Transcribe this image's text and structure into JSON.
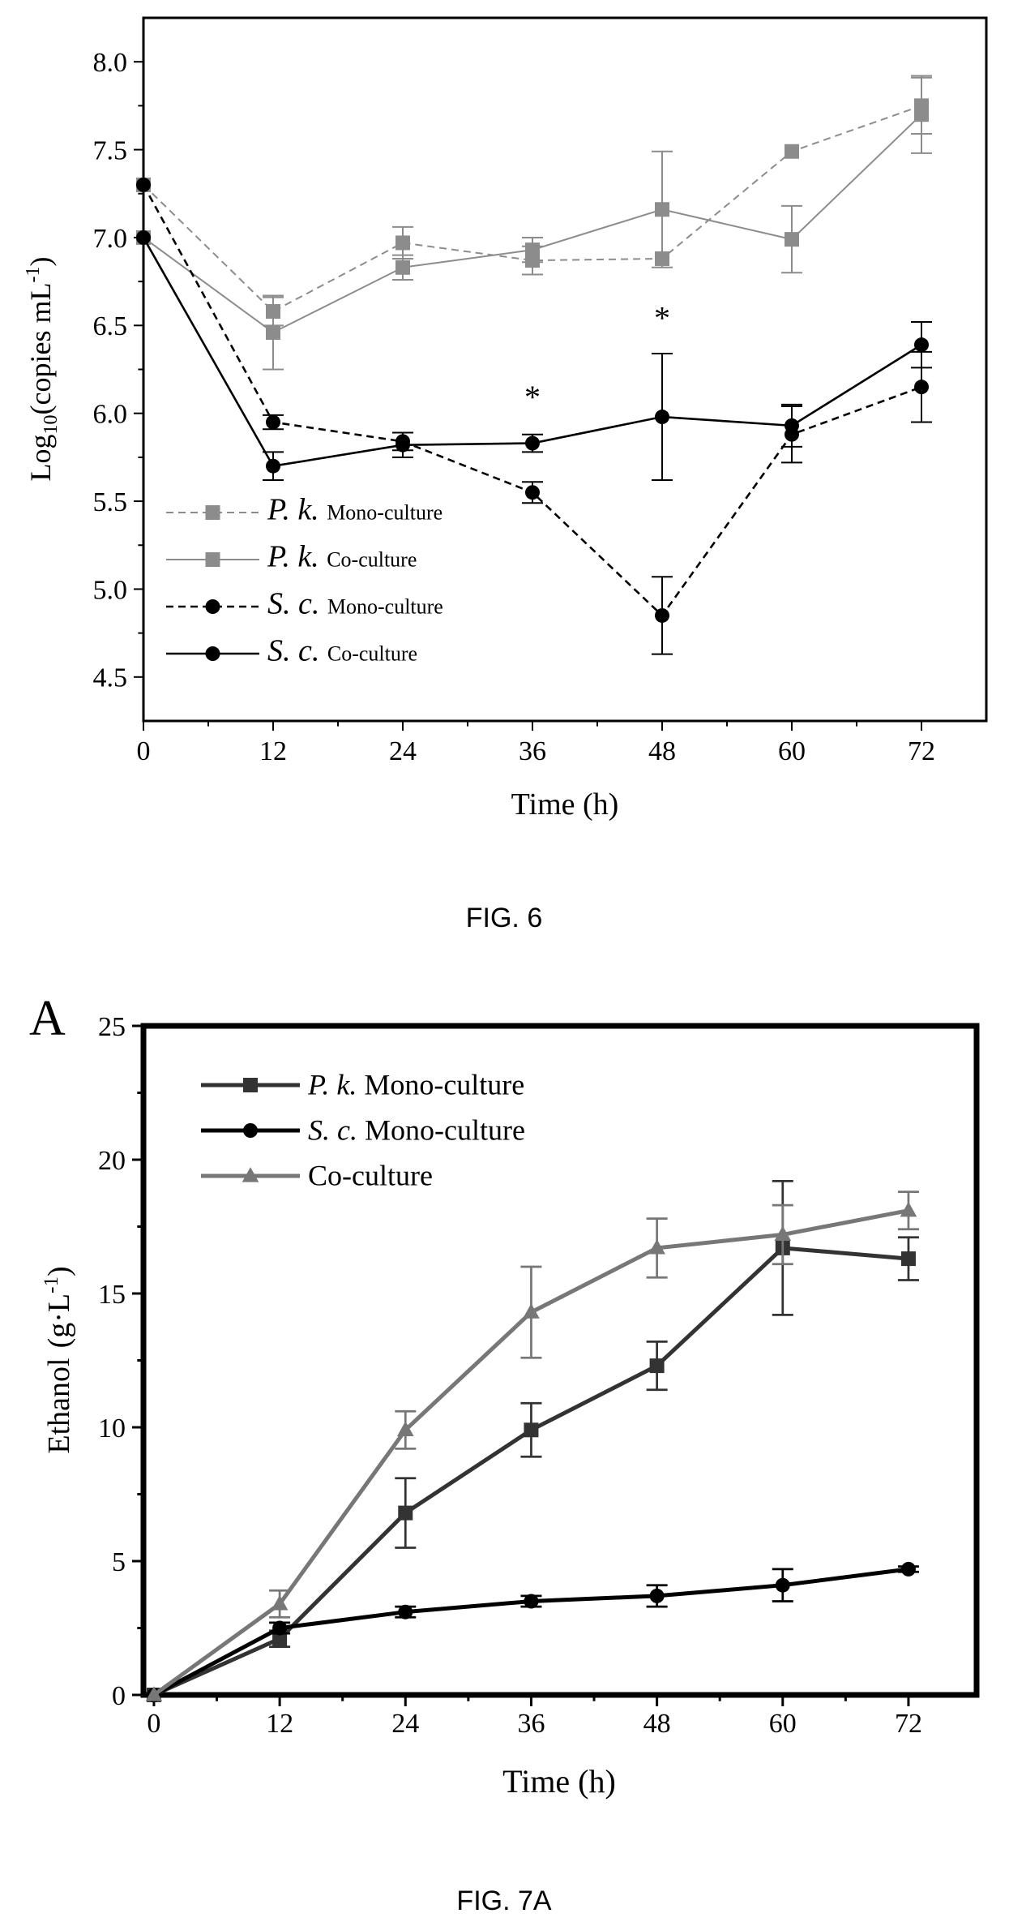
{
  "chart_data": [
    {
      "type": "line",
      "caption": "FIG. 6",
      "xlabel": "Time (h)",
      "ylabel_prefix": "Log",
      "ylabel_sub": "10",
      "ylabel_mid": "(copies mL",
      "ylabel_sup": "-1",
      "ylabel_end": ")",
      "x_ticks": [
        "0",
        "12",
        "24",
        "36",
        "48",
        "60",
        "72"
      ],
      "y_ticks": [
        "4.5",
        "5.0",
        "5.5",
        "6.0",
        "6.5",
        "7.0",
        "7.5",
        "8.0"
      ],
      "xlim": [
        0,
        78
      ],
      "ylim": [
        4.25,
        8.25
      ],
      "grid": false,
      "legend_position": "bottom-left",
      "x": [
        0,
        12,
        24,
        36,
        48,
        60,
        72
      ],
      "series": [
        {
          "name_italic": "P. k.",
          "name_suffix": "Mono-culture",
          "marker": "square",
          "color": "#8c8c8c",
          "dash": "dashed",
          "line_width": 2,
          "values": [
            7.3,
            6.58,
            6.97,
            6.87,
            6.88,
            7.49,
            7.75
          ],
          "errors": [
            0,
            0.08,
            0.09,
            0.08,
            0,
            0,
            0.16
          ]
        },
        {
          "name_italic": "P. k.",
          "name_suffix": "Co-culture",
          "marker": "square",
          "color": "#8c8c8c",
          "dash": "solid",
          "line_width": 2,
          "values": [
            7.0,
            6.46,
            6.83,
            6.93,
            7.16,
            6.99,
            7.7
          ],
          "errors": [
            0,
            0.21,
            0.07,
            0.07,
            0.33,
            0.19,
            0.22
          ]
        },
        {
          "name_italic": "S. c.",
          "name_suffix": "Mono-culture",
          "marker": "circle",
          "color": "#000000",
          "dash": "dashed",
          "line_width": 2.6,
          "values": [
            7.3,
            5.95,
            5.84,
            5.55,
            4.85,
            5.88,
            6.15
          ],
          "errors": [
            0,
            0.04,
            0.05,
            0.06,
            0.22,
            0.16,
            0.2
          ]
        },
        {
          "name_italic": "S. c.",
          "name_suffix": "Co-culture",
          "marker": "circle",
          "color": "#000000",
          "dash": "solid",
          "line_width": 2.6,
          "values": [
            7.0,
            5.7,
            5.82,
            5.83,
            5.98,
            5.93,
            6.39
          ],
          "errors": [
            0,
            0.08,
            0.07,
            0.05,
            0.36,
            0.12,
            0.13
          ]
        }
      ],
      "annotations": [
        {
          "text": "*",
          "x": 36,
          "y": 6.03
        },
        {
          "text": "*",
          "x": 48,
          "y": 6.48
        }
      ]
    },
    {
      "type": "line",
      "caption": "FIG. 7A",
      "panel_label": "A",
      "xlabel": "Time (h)",
      "ylabel": "Ethanol",
      "ylabel_unit": "(g·L",
      "ylabel_sup": "-1",
      "ylabel_end": ")",
      "x_ticks": [
        "0",
        "12",
        "24",
        "36",
        "48",
        "60",
        "72"
      ],
      "y_ticks": [
        "0",
        "5",
        "10",
        "15",
        "20",
        "25"
      ],
      "xlim": [
        -1,
        78.5
      ],
      "ylim": [
        0,
        25
      ],
      "grid": false,
      "legend_position": "top-left",
      "x": [
        0,
        12,
        24,
        36,
        48,
        60,
        72
      ],
      "series": [
        {
          "name_italic": "P. k.",
          "name_suffix": "Mono-culture",
          "marker": "square",
          "color": "#333333",
          "line_width": 5,
          "values": [
            0,
            2.1,
            6.8,
            9.9,
            12.3,
            16.7,
            16.3
          ],
          "errors": [
            0,
            0.3,
            1.3,
            1.0,
            0.9,
            2.5,
            0.8
          ]
        },
        {
          "name_italic": "S. c.",
          "name_suffix": "Mono-culture",
          "marker": "circle",
          "color": "#000000",
          "line_width": 5,
          "values": [
            0,
            2.5,
            3.1,
            3.5,
            3.7,
            4.1,
            4.7
          ],
          "errors": [
            0,
            0.2,
            0.2,
            0.2,
            0.4,
            0.6,
            0.1
          ]
        },
        {
          "name_italic": "",
          "name_suffix": "Co-culture",
          "marker": "triangle",
          "color": "#777777",
          "line_width": 5,
          "values": [
            0,
            3.4,
            9.9,
            14.3,
            16.7,
            17.2,
            18.1
          ],
          "errors": [
            0,
            0.5,
            0.7,
            1.7,
            1.1,
            1.1,
            0.7
          ]
        }
      ]
    }
  ]
}
